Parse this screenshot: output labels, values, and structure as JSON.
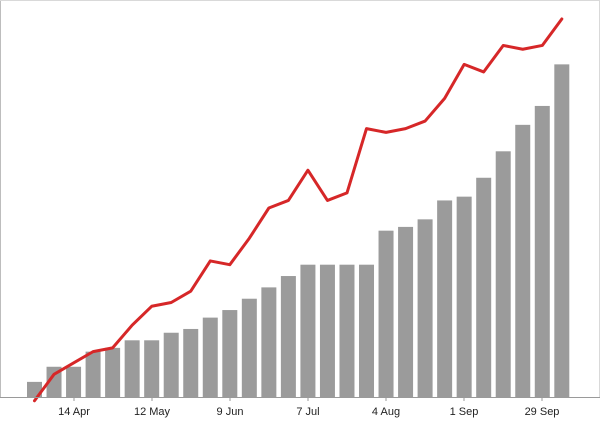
{
  "chart_data": {
    "type": "bar",
    "x_tick_labels": [
      "14 Apr",
      "12 May",
      "9 Jun",
      "7 Jul",
      "4 Aug",
      "1 Sep",
      "29 Sep"
    ],
    "categories": [
      "",
      "",
      "",
      "",
      "",
      "",
      "",
      "",
      "",
      "",
      "",
      "",
      "",
      "",
      "",
      "",
      "",
      "",
      "",
      "",
      "",
      "",
      "",
      "",
      "",
      "",
      "",
      ""
    ],
    "series": [
      {
        "type": "bar",
        "color": "#9b9b9b",
        "values": [
          4,
          8,
          8,
          12,
          13,
          15,
          15,
          17,
          18,
          21,
          23,
          26,
          29,
          32,
          35,
          35,
          35,
          35,
          44,
          45,
          47,
          52,
          53,
          58,
          65,
          72,
          77,
          88
        ]
      },
      {
        "type": "line",
        "color": "#d62728",
        "values": [
          -1,
          6,
          9,
          12,
          13,
          19,
          24,
          25,
          28,
          36,
          35,
          42,
          50,
          52,
          60,
          52,
          54,
          71,
          70,
          71,
          73,
          79,
          88,
          86,
          93,
          92,
          93,
          100
        ]
      }
    ],
    "ylim": [
      0,
      100
    ],
    "grid": false,
    "title": "",
    "xlabel": "",
    "ylabel": ""
  }
}
